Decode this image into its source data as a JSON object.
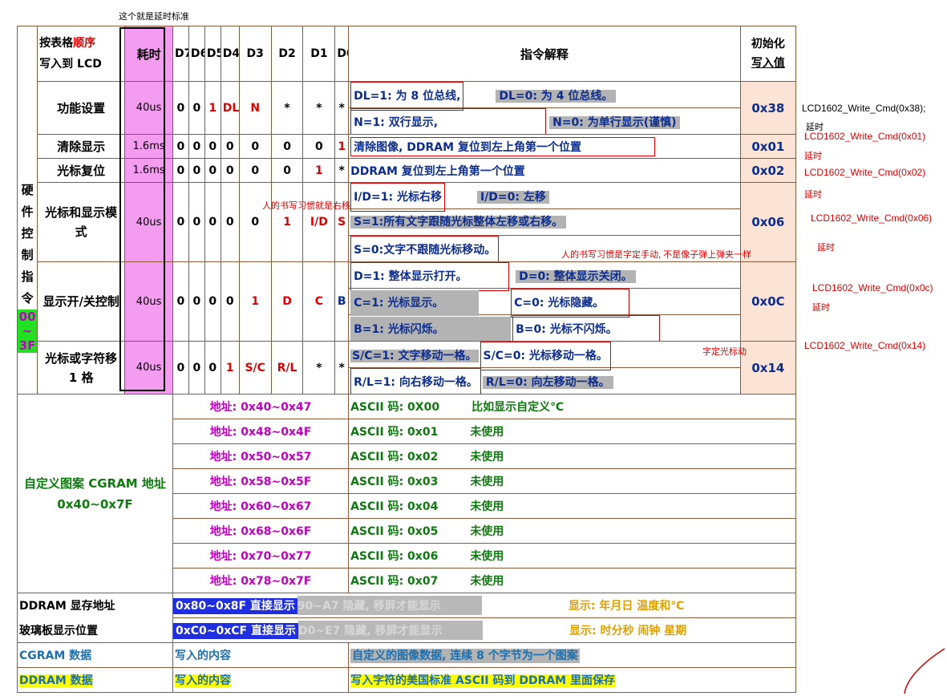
{
  "top_note": "这个就是延时标准",
  "header": {
    "order_a": "按表格",
    "order_b": "顺序",
    "order_c": "写入到 LCD",
    "time": "耗时",
    "bits": [
      "D7",
      "D6",
      "D5",
      "D4",
      "D3",
      "D2",
      "D1",
      "D0"
    ],
    "explain": "指令解释",
    "init_a": "初始化",
    "init_b": "写入值"
  },
  "side_label": "硬件控制指令",
  "side_range": [
    "00",
    "~",
    "3F"
  ],
  "rows": [
    {
      "name": "功能设置",
      "time": "40us",
      "bits": [
        "0",
        "0",
        "1",
        "DL",
        "N",
        "*",
        "*",
        "*"
      ],
      "lines": [
        [
          "DL=1: 为 8 位总线,",
          "DL=0: 为 4 位总线。"
        ],
        [
          "N=1: 双行显示,",
          "N=0: 为单行显示(谨慎)"
        ]
      ],
      "init": "0x38"
    },
    {
      "name": "清除显示",
      "time": "1.6ms",
      "bits": [
        "0",
        "0",
        "0",
        "0",
        "0",
        "0",
        "0",
        "1"
      ],
      "lines": [
        [
          "清除图像, DDRAM 复位到左上角第一个位置"
        ]
      ],
      "init": "0x01"
    },
    {
      "name": "光标复位",
      "time": "1.6ms",
      "bits": [
        "0",
        "0",
        "0",
        "0",
        "0",
        "0",
        "1",
        "*"
      ],
      "lines": [
        [
          "DDRAM 复位到左上角第一个位置"
        ]
      ],
      "init": "0x02"
    },
    {
      "name": "光标和显示模式",
      "time": "40us",
      "bits": [
        "0",
        "0",
        "0",
        "0",
        "0",
        "1",
        "I/D",
        "S"
      ],
      "lines": [
        [
          "I/D=1: 光标右移",
          "I/D=0: 左移"
        ],
        [
          "S=1:所有文字跟随光标整体左移或右移。"
        ],
        [
          "S=0:文字不跟随光标移动。"
        ]
      ],
      "init": "0x06"
    },
    {
      "name": "显示开/关控制",
      "time": "40us",
      "bits": [
        "0",
        "0",
        "0",
        "0",
        "1",
        "D",
        "C",
        "B"
      ],
      "lines": [
        [
          "D=1: 整体显示打开。",
          "D=0: 整体显示关闭。"
        ],
        [
          "C=1: 光标显示。",
          "C=0: 光标隐藏。"
        ],
        [
          "B=1: 光标闪烁。",
          "B=0: 光标不闪烁。"
        ]
      ],
      "init": "0x0C"
    },
    {
      "name": "光标或字符移 1 格",
      "time": "40us",
      "bits": [
        "0",
        "0",
        "0",
        "1",
        "S/C",
        "R/L",
        "*",
        "*"
      ],
      "lines": [
        [
          "S/C=1: 文字移动一格。",
          "S/C=0: 光标移动一格。"
        ],
        [
          "R/L=1: 向右移动一格。",
          "R/L=0: 向左移动一格。"
        ]
      ],
      "init": "0x14"
    }
  ],
  "cgram": {
    "label": "自定义图案 CGRAM 地址",
    "range": "0x40~0x7F",
    "entries": [
      {
        "addr": "地址: 0x40~0x47",
        "ascii": "ASCII 码: 0X00",
        "note": "比如显示自定义℃"
      },
      {
        "addr": "地址: 0x48~0x4F",
        "ascii": "ASCII 码: 0x01",
        "note": "未使用"
      },
      {
        "addr": "地址: 0x50~0x57",
        "ascii": "ASCII 码: 0x02",
        "note": "未使用"
      },
      {
        "addr": "地址: 0x58~0x5F",
        "ascii": "ASCII 码: 0x03",
        "note": "未使用"
      },
      {
        "addr": "地址: 0x60~0x67",
        "ascii": "ASCII 码: 0x04",
        "note": "未使用"
      },
      {
        "addr": "地址: 0x68~0x6F",
        "ascii": "ASCII 码: 0x05",
        "note": "未使用"
      },
      {
        "addr": "地址: 0x70~0x77",
        "ascii": "ASCII 码: 0x06",
        "note": "未使用"
      },
      {
        "addr": "地址: 0x78~0x7F",
        "ascii": "ASCII 码: 0x07",
        "note": "未使用"
      }
    ]
  },
  "ddram": {
    "label1": "DDRAM 显存地址",
    "label2": "玻璃板显示位置",
    "row1_blue": "0x80~0x8F 直接显示",
    "row1_faint": "90~A7 隐藏, 移屏才能显示",
    "row1_gold": "显示: 年月日 温度和℃",
    "row2_blue": "0xC0~0xCF 直接显示",
    "row2_faint": "D0~E7 隐藏, 移屏才能显示",
    "row2_gold": "显示: 时分秒 闹钟 星期"
  },
  "footer": {
    "cgram_label": "CGRAM 数据",
    "cgram_write": "写入的内容",
    "cgram_desc": "自定义的图像数据, 连续 8 个字节为一个图案",
    "ddram_label": "DDRAM 数据",
    "ddram_write": "写入的内容",
    "ddram_desc": "写入字符的美国标准 ASCII 码到 DDRAM 里面保存"
  },
  "annotations": {
    "a1": "人的书写习惯就是右移",
    "a2": "人的书写习惯是字定手动, 不是像子弹上弹夹一样",
    "a3": "字定光标动"
  },
  "side_code": [
    "LCD1602_Write_Cmd(0x38);",
    "延时",
    "LCD1602_Write_Cmd(0x01)",
    "延时",
    "LCD1602_Write_Cmd(0x02)",
    "延时",
    "LCD1602_Write_Cmd(0x06)",
    "延时",
    "LCD1602_Write_Cmd(0x0c)",
    "延时",
    "LCD1602_Write_Cmd(0x14)"
  ]
}
